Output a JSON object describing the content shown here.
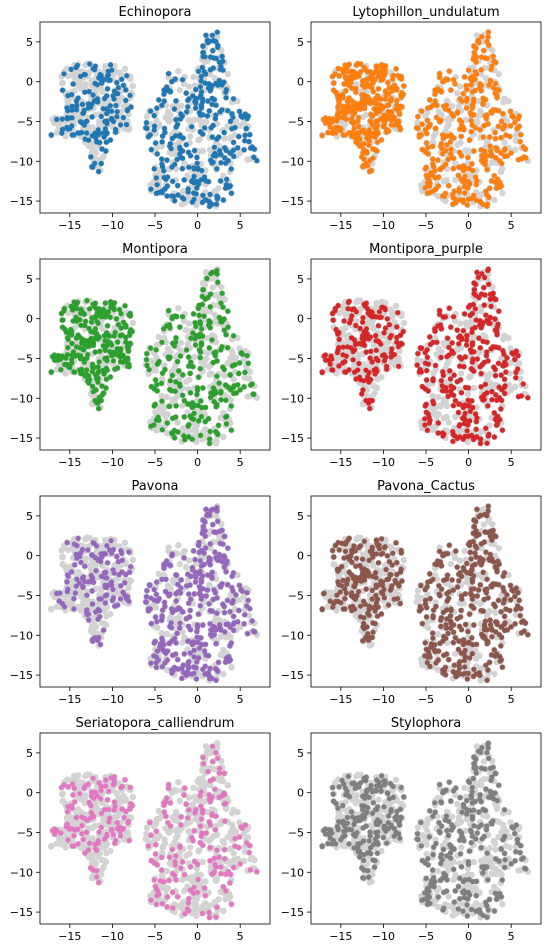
{
  "chart_data": {
    "type": "scatter",
    "layout": "grid-4x2",
    "xlim": [
      -18.5,
      8.5
    ],
    "ylim": [
      -16.5,
      7.5
    ],
    "xticks": [
      -15,
      -10,
      -5,
      0,
      5
    ],
    "yticks": [
      5,
      0,
      -5,
      -10,
      -15
    ],
    "background_color": "#d3d3d3",
    "panels": [
      {
        "title": "Echinopora",
        "color": "#1f77b4",
        "highlight": {
          "A": 0.35,
          "B": 0.55
        }
      },
      {
        "title": "Lytophillon_undulatum",
        "color": "#ff7f0e",
        "highlight": {
          "A": 0.85,
          "B": 0.6
        }
      },
      {
        "title": "Montipora",
        "color": "#2ca02c",
        "highlight": {
          "A": 0.6,
          "B": 0.45
        }
      },
      {
        "title": "Montipora_purple",
        "color": "#d62728",
        "highlight": {
          "A": 0.35,
          "B": 0.55
        }
      },
      {
        "title": "Pavona",
        "color": "#9467bd",
        "highlight": {
          "A": 0.25,
          "B": 0.65
        }
      },
      {
        "title": "Pavona_Cactus",
        "color": "#8c564b",
        "highlight": {
          "A": 0.45,
          "B": 0.6
        }
      },
      {
        "title": "Seriatopora_calliendrum",
        "color": "#e377c2",
        "highlight": {
          "A": 0.25,
          "B": 0.3
        }
      },
      {
        "title": "Stylophora",
        "color": "#7f7f7f",
        "highlight": {
          "A": 0.45,
          "B": 0.5
        }
      }
    ]
  }
}
